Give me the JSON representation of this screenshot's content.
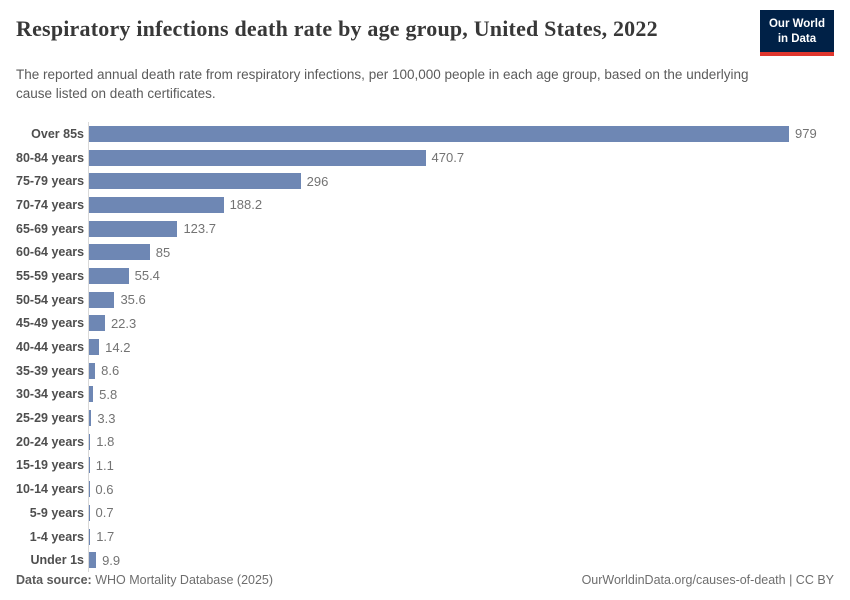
{
  "header": {
    "title": "Respiratory infections death rate by age group, United States, 2022",
    "subtitle": "The reported annual death rate from respiratory infections, per 100,000 people in each age group, based on the underlying cause listed on death certificates.",
    "logo_line1": "Our World",
    "logo_line2": "in Data"
  },
  "colors": {
    "bar": "#6e87b4",
    "logo_background": "#002147",
    "logo_accent": "#e0362d",
    "axis_line": "#d9d9d9"
  },
  "chart_data": {
    "type": "bar",
    "orientation": "horizontal",
    "title": "Respiratory infections death rate by age group, United States, 2022",
    "subtitle": "The reported annual death rate from respiratory infections, per 100,000 people in each age group, based on the underlying cause listed on death certificates.",
    "categories": [
      "Over 85s",
      "80-84 years",
      "75-79 years",
      "70-74 years",
      "65-69 years",
      "60-64 years",
      "55-59 years",
      "50-54 years",
      "45-49 years",
      "40-44 years",
      "35-39 years",
      "30-34 years",
      "25-29 years",
      "20-24 years",
      "15-19 years",
      "10-14 years",
      "5-9 years",
      "1-4 years",
      "Under 1s"
    ],
    "values": [
      979,
      470.7,
      296,
      188.2,
      123.7,
      85,
      55.4,
      35.6,
      22.3,
      14.2,
      8.6,
      5.8,
      3.3,
      1.8,
      1.1,
      0.6,
      0.7,
      1.7,
      9.9
    ],
    "value_labels": [
      "979",
      "470.7",
      "296",
      "188.2",
      "123.7",
      "85",
      "55.4",
      "35.6",
      "22.3",
      "14.2",
      "8.6",
      "5.8",
      "3.3",
      "1.8",
      "1.1",
      "0.6",
      "0.7",
      "1.7",
      "9.9"
    ],
    "xlim": [
      0,
      979
    ],
    "grid": false,
    "legend": false
  },
  "footer": {
    "data_source_label": "Data source:",
    "data_source_value": " WHO Mortality Database (2025)",
    "attribution": "OurWorldinData.org/causes-of-death | CC BY"
  }
}
